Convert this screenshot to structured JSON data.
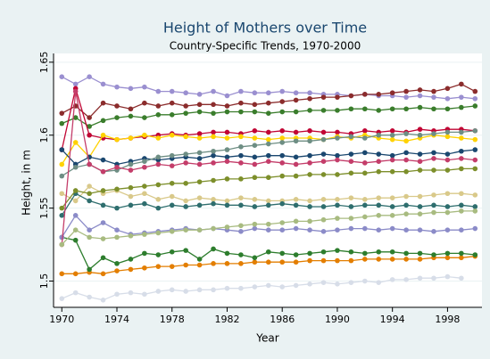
{
  "chart_data": {
    "type": "line",
    "title": "Height of Mothers over Time",
    "subtitle": "Country-Specific Trends, 1970-2000",
    "x_label": "Year",
    "y_label": "Height, in m",
    "xlim": [
      1969.4,
      2000.5
    ],
    "ylim": [
      1.482,
      1.656
    ],
    "xticks": [
      1970,
      1974,
      1978,
      1982,
      1986,
      1990,
      1994,
      1998
    ],
    "yticks": [
      1.5,
      1.55,
      1.6,
      1.65
    ],
    "grid": true,
    "x": [
      1970,
      1971,
      1972,
      1973,
      1974,
      1975,
      1976,
      1977,
      1978,
      1979,
      1980,
      1981,
      1982,
      1983,
      1984,
      1985,
      1986,
      1987,
      1988,
      1989,
      1990,
      1991,
      1992,
      1993,
      1994,
      1995,
      1996,
      1997,
      1998,
      1999,
      2000
    ],
    "series": [
      {
        "color": "#9a8fd0",
        "values": [
          1.64,
          1.635,
          1.64,
          1.635,
          1.633,
          1.632,
          1.633,
          1.63,
          1.63,
          1.629,
          1.628,
          1.63,
          1.627,
          1.63,
          1.629,
          1.629,
          1.63,
          1.629,
          1.629,
          1.628,
          1.628,
          1.627,
          1.628,
          1.627,
          1.627,
          1.626,
          1.627,
          1.626,
          1.625,
          1.626,
          1.625
        ]
      },
      {
        "color": "#8b2c2c",
        "values": [
          1.615,
          1.62,
          1.612,
          1.622,
          1.62,
          1.618,
          1.622,
          1.62,
          1.622,
          1.62,
          1.621,
          1.621,
          1.62,
          1.622,
          1.621,
          1.622,
          1.623,
          1.624,
          1.625,
          1.626,
          1.626,
          1.627,
          1.628,
          1.628,
          1.629,
          1.63,
          1.631,
          1.63,
          1.632,
          1.635,
          1.63
        ]
      },
      {
        "color": "#3a7d2c",
        "values": [
          1.608,
          1.612,
          1.606,
          1.61,
          1.612,
          1.613,
          1.612,
          1.614,
          1.614,
          1.615,
          1.616,
          1.615,
          1.616,
          1.616,
          1.616,
          1.615,
          1.616,
          1.616,
          1.617,
          1.617,
          1.617,
          1.618,
          1.618,
          1.617,
          1.618,
          1.618,
          1.619,
          1.618,
          1.618,
          1.619,
          1.62
        ]
      },
      {
        "color": "#c10534",
        "values": [
          1.59,
          1.632,
          1.6,
          1.598,
          1.597,
          1.598,
          1.599,
          1.6,
          1.601,
          1.6,
          1.601,
          1.602,
          1.602,
          1.601,
          1.603,
          1.602,
          1.603,
          1.602,
          1.603,
          1.602,
          1.602,
          1.601,
          1.603,
          1.602,
          1.603,
          1.602,
          1.604,
          1.603,
          1.604,
          1.604,
          1.603
        ]
      },
      {
        "color": "#ffd200",
        "values": [
          1.58,
          1.595,
          1.585,
          1.6,
          1.597,
          1.598,
          1.6,
          1.598,
          1.6,
          1.599,
          1.598,
          1.599,
          1.598,
          1.599,
          1.598,
          1.597,
          1.598,
          1.598,
          1.598,
          1.597,
          1.599,
          1.598,
          1.6,
          1.598,
          1.597,
          1.596,
          1.598,
          1.6,
          1.599,
          1.598,
          1.597
        ]
      },
      {
        "color": "#1a476f",
        "values": [
          1.59,
          1.58,
          1.585,
          1.583,
          1.58,
          1.582,
          1.584,
          1.583,
          1.584,
          1.585,
          1.584,
          1.586,
          1.585,
          1.586,
          1.585,
          1.586,
          1.586,
          1.585,
          1.586,
          1.587,
          1.586,
          1.587,
          1.588,
          1.587,
          1.586,
          1.588,
          1.587,
          1.588,
          1.587,
          1.589,
          1.59
        ]
      },
      {
        "color": "#6e8e84",
        "values": [
          1.572,
          1.578,
          1.58,
          1.575,
          1.576,
          1.58,
          1.582,
          1.585,
          1.586,
          1.587,
          1.588,
          1.589,
          1.59,
          1.592,
          1.593,
          1.594,
          1.595,
          1.596,
          1.596,
          1.597,
          1.598,
          1.599,
          1.598,
          1.6,
          1.6,
          1.601,
          1.6,
          1.601,
          1.602,
          1.602,
          1.603
        ]
      },
      {
        "color": "#e37e00",
        "values": [
          1.505,
          1.505,
          1.506,
          1.505,
          1.507,
          1.508,
          1.509,
          1.51,
          1.51,
          1.511,
          1.511,
          1.512,
          1.512,
          1.512,
          1.513,
          1.513,
          1.513,
          1.513,
          1.514,
          1.514,
          1.514,
          1.514,
          1.515,
          1.515,
          1.515,
          1.515,
          1.515,
          1.516,
          1.516,
          1.516,
          1.517
        ]
      },
      {
        "color": "#2d7d2d",
        "values": [
          1.53,
          1.528,
          1.508,
          1.516,
          1.512,
          1.515,
          1.519,
          1.518,
          1.52,
          1.521,
          1.515,
          1.522,
          1.519,
          1.518,
          1.516,
          1.52,
          1.519,
          1.518,
          1.519,
          1.52,
          1.521,
          1.52,
          1.519,
          1.52,
          1.52,
          1.519,
          1.519,
          1.518,
          1.519,
          1.519,
          1.518
        ]
      },
      {
        "color": "#d7dde8",
        "values": [
          1.488,
          1.492,
          1.489,
          1.487,
          1.491,
          1.492,
          1.491,
          1.493,
          1.494,
          1.493,
          1.494,
          1.494,
          1.495,
          1.495,
          1.496,
          1.497,
          1.496,
          1.497,
          1.498,
          1.499,
          1.498,
          1.499,
          1.5,
          1.499,
          1.501,
          1.501,
          1.502,
          1.502,
          1.503,
          1.502,
          null
        ]
      },
      {
        "color": "#8b8bc8",
        "values": [
          1.53,
          1.545,
          1.535,
          1.54,
          1.535,
          1.532,
          1.533,
          1.534,
          1.535,
          1.536,
          1.535,
          1.536,
          1.535,
          1.534,
          1.536,
          1.535,
          1.535,
          1.536,
          1.535,
          1.534,
          1.535,
          1.536,
          1.536,
          1.535,
          1.536,
          1.535,
          1.535,
          1.534,
          1.535,
          1.535,
          1.536
        ]
      },
      {
        "color": "#d9c98a",
        "values": [
          1.56,
          1.555,
          1.565,
          1.56,
          1.562,
          1.558,
          1.56,
          1.556,
          1.558,
          1.555,
          1.557,
          1.556,
          1.555,
          1.557,
          1.556,
          1.555,
          1.555,
          1.556,
          1.555,
          1.556,
          1.556,
          1.557,
          1.556,
          1.557,
          1.557,
          1.558,
          1.558,
          1.559,
          1.56,
          1.56,
          1.559
        ]
      },
      {
        "color": "#2e6e6e",
        "values": [
          1.545,
          1.56,
          1.555,
          1.552,
          1.55,
          1.552,
          1.553,
          1.55,
          1.552,
          1.551,
          1.552,
          1.553,
          1.552,
          1.552,
          1.551,
          1.552,
          1.553,
          1.552,
          1.551,
          1.551,
          1.552,
          1.551,
          1.552,
          1.552,
          1.551,
          1.552,
          1.551,
          1.552,
          1.551,
          1.552,
          1.551
        ]
      },
      {
        "color": "#7d8f2b",
        "values": [
          1.55,
          1.562,
          1.56,
          1.562,
          1.563,
          1.564,
          1.565,
          1.566,
          1.567,
          1.567,
          1.568,
          1.569,
          1.57,
          1.57,
          1.571,
          1.571,
          1.572,
          1.572,
          1.573,
          1.573,
          1.573,
          1.574,
          1.574,
          1.575,
          1.575,
          1.575,
          1.576,
          1.576,
          1.576,
          1.577,
          1.577
        ]
      },
      {
        "color": "#c43d6a",
        "values": [
          1.525,
          1.63,
          1.58,
          1.575,
          1.578,
          1.576,
          1.578,
          1.58,
          1.579,
          1.581,
          1.58,
          1.581,
          1.582,
          1.581,
          1.58,
          1.582,
          1.581,
          1.58,
          1.581,
          1.582,
          1.583,
          1.582,
          1.581,
          1.582,
          1.583,
          1.583,
          1.582,
          1.584,
          1.583,
          1.584,
          1.583
        ]
      },
      {
        "color": "#a8bb80",
        "values": [
          1.525,
          1.535,
          1.53,
          1.529,
          1.53,
          1.531,
          1.532,
          1.533,
          1.534,
          1.535,
          1.535,
          1.536,
          1.537,
          1.538,
          1.539,
          1.539,
          1.54,
          1.541,
          1.541,
          1.542,
          1.543,
          1.543,
          1.544,
          1.545,
          1.545,
          1.546,
          1.546,
          1.547,
          1.547,
          1.548,
          1.548
        ]
      }
    ]
  }
}
